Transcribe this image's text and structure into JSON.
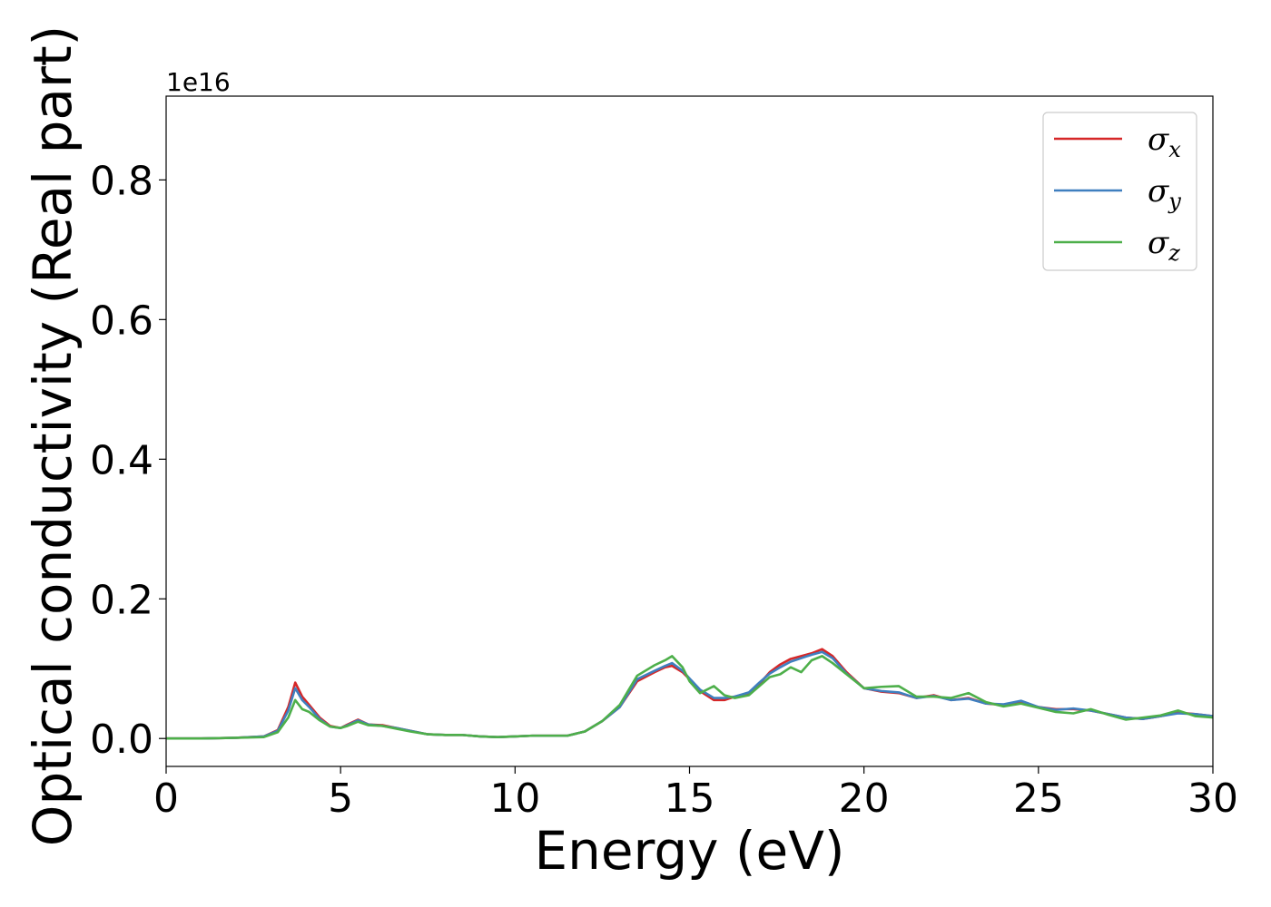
{
  "chart_data": {
    "type": "line",
    "xlabel": "Energy (eV)",
    "ylabel": "Optical conductivity (Real part)",
    "y_offset_text": "1e16",
    "xlim": [
      0,
      30
    ],
    "ylim": [
      -0.04,
      0.92
    ],
    "x_ticks": [
      0,
      5,
      10,
      15,
      20,
      25,
      30
    ],
    "x_tick_labels": [
      "0",
      "5",
      "10",
      "15",
      "20",
      "25",
      "30"
    ],
    "y_ticks": [
      0.0,
      0.2,
      0.4,
      0.6,
      0.8
    ],
    "y_tick_labels": [
      "0.0",
      "0.2",
      "0.4",
      "0.6",
      "0.8"
    ],
    "grid": false,
    "legend_position": "top-right",
    "x": [
      0,
      1,
      2,
      2.8,
      3.2,
      3.5,
      3.7,
      3.9,
      4.1,
      4.4,
      4.7,
      5.0,
      5.2,
      5.5,
      5.8,
      6.2,
      6.6,
      7.0,
      7.5,
      8.0,
      8.5,
      9.0,
      9.5,
      10.0,
      10.5,
      11.0,
      11.5,
      12.0,
      12.5,
      13.0,
      13.5,
      14.0,
      14.3,
      14.5,
      14.8,
      15.0,
      15.3,
      15.7,
      16.0,
      16.3,
      16.7,
      17.0,
      17.3,
      17.6,
      17.9,
      18.2,
      18.5,
      18.8,
      19.1,
      19.5,
      20.0,
      20.5,
      21.0,
      21.5,
      22.0,
      22.5,
      23.0,
      23.5,
      24.0,
      24.5,
      25.0,
      25.5,
      26.0,
      26.5,
      27.0,
      27.5,
      28.0,
      28.5,
      29.0,
      29.5,
      30.0
    ],
    "series": [
      {
        "name": "σx",
        "color": "#d62728",
        "values": [
          0.0,
          0.0,
          0.001,
          0.003,
          0.012,
          0.045,
          0.08,
          0.06,
          0.048,
          0.03,
          0.018,
          0.015,
          0.02,
          0.027,
          0.02,
          0.019,
          0.015,
          0.011,
          0.006,
          0.005,
          0.005,
          0.003,
          0.002,
          0.003,
          0.004,
          0.004,
          0.004,
          0.01,
          0.025,
          0.045,
          0.082,
          0.095,
          0.102,
          0.104,
          0.095,
          0.085,
          0.068,
          0.055,
          0.055,
          0.06,
          0.065,
          0.078,
          0.095,
          0.106,
          0.114,
          0.118,
          0.122,
          0.128,
          0.118,
          0.095,
          0.072,
          0.067,
          0.065,
          0.058,
          0.062,
          0.055,
          0.058,
          0.05,
          0.048,
          0.052,
          0.045,
          0.042,
          0.042,
          0.04,
          0.035,
          0.03,
          0.028,
          0.032,
          0.037,
          0.035,
          0.032
        ]
      },
      {
        "name": "σy",
        "color": "#3f7fbf",
        "values": [
          0.0,
          0.0,
          0.001,
          0.003,
          0.011,
          0.04,
          0.072,
          0.055,
          0.045,
          0.028,
          0.017,
          0.015,
          0.019,
          0.026,
          0.02,
          0.018,
          0.015,
          0.011,
          0.006,
          0.005,
          0.005,
          0.003,
          0.002,
          0.003,
          0.004,
          0.004,
          0.004,
          0.01,
          0.025,
          0.045,
          0.085,
          0.097,
          0.104,
          0.108,
          0.097,
          0.086,
          0.07,
          0.058,
          0.058,
          0.06,
          0.066,
          0.08,
          0.093,
          0.102,
          0.11,
          0.115,
          0.12,
          0.124,
          0.115,
          0.093,
          0.072,
          0.068,
          0.066,
          0.058,
          0.061,
          0.055,
          0.057,
          0.05,
          0.049,
          0.054,
          0.045,
          0.041,
          0.043,
          0.04,
          0.035,
          0.03,
          0.028,
          0.032,
          0.036,
          0.035,
          0.032
        ]
      },
      {
        "name": "σz",
        "color": "#4daf4a",
        "values": [
          0.0,
          0.0,
          0.001,
          0.002,
          0.009,
          0.03,
          0.055,
          0.042,
          0.038,
          0.026,
          0.017,
          0.015,
          0.018,
          0.024,
          0.019,
          0.018,
          0.014,
          0.01,
          0.006,
          0.005,
          0.005,
          0.003,
          0.002,
          0.003,
          0.004,
          0.004,
          0.004,
          0.01,
          0.025,
          0.048,
          0.09,
          0.105,
          0.112,
          0.118,
          0.102,
          0.082,
          0.065,
          0.075,
          0.062,
          0.058,
          0.062,
          0.075,
          0.088,
          0.092,
          0.102,
          0.095,
          0.112,
          0.118,
          0.108,
          0.092,
          0.072,
          0.074,
          0.075,
          0.06,
          0.06,
          0.058,
          0.065,
          0.052,
          0.046,
          0.05,
          0.044,
          0.038,
          0.036,
          0.042,
          0.034,
          0.027,
          0.03,
          0.033,
          0.04,
          0.032,
          0.03
        ]
      }
    ],
    "legend": [
      {
        "base": "σ",
        "sub": "x",
        "color": "#d62728"
      },
      {
        "base": "σ",
        "sub": "y",
        "color": "#3f7fbf"
      },
      {
        "base": "σ",
        "sub": "z",
        "color": "#4daf4a"
      }
    ]
  }
}
